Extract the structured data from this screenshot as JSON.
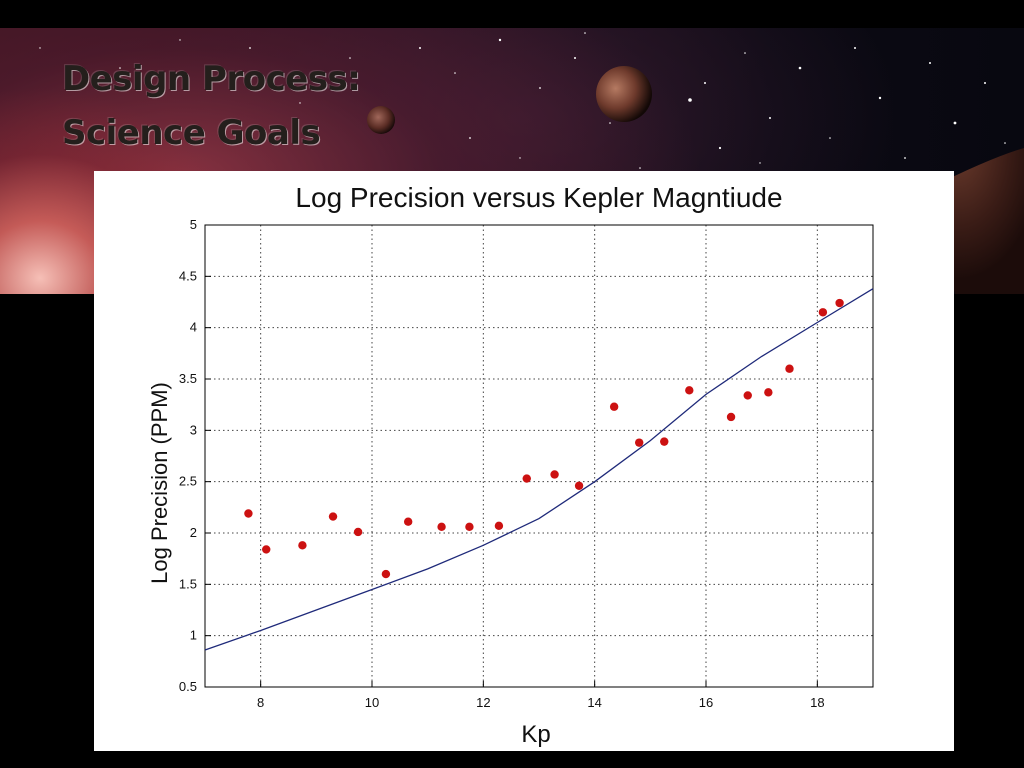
{
  "slide": {
    "title_line1": "Design Process:",
    "title_line2": "Science Goals"
  },
  "colors": {
    "background": "#000000",
    "title_text": "#241f1c",
    "marker": "#cc1111",
    "fit_line": "#1f2a7a",
    "grid": "#444444"
  },
  "chart_data": {
    "type": "scatter",
    "title": "Log Precision versus Kepler Magntiude",
    "xlabel": "Kp",
    "ylabel": "Log Precision (PPM)",
    "xlim": [
      7,
      19
    ],
    "ylim": [
      0.5,
      5
    ],
    "grid": true,
    "x_ticks": [
      8,
      10,
      12,
      14,
      16,
      18
    ],
    "y_ticks": [
      0.5,
      1,
      1.5,
      2,
      2.5,
      3,
      3.5,
      4,
      4.5,
      5
    ],
    "series": [
      {
        "kind": "points",
        "color": "#cc1111",
        "points": [
          {
            "x": 7.78,
            "y": 2.19
          },
          {
            "x": 8.1,
            "y": 1.84
          },
          {
            "x": 8.75,
            "y": 1.88
          },
          {
            "x": 9.3,
            "y": 2.16
          },
          {
            "x": 9.75,
            "y": 2.01
          },
          {
            "x": 10.25,
            "y": 1.6
          },
          {
            "x": 10.65,
            "y": 2.11
          },
          {
            "x": 11.25,
            "y": 2.06
          },
          {
            "x": 11.75,
            "y": 2.06
          },
          {
            "x": 12.28,
            "y": 2.07
          },
          {
            "x": 12.78,
            "y": 2.53
          },
          {
            "x": 13.28,
            "y": 2.57
          },
          {
            "x": 13.72,
            "y": 2.46
          },
          {
            "x": 14.35,
            "y": 3.23
          },
          {
            "x": 14.8,
            "y": 2.88
          },
          {
            "x": 15.25,
            "y": 2.89
          },
          {
            "x": 15.7,
            "y": 3.39
          },
          {
            "x": 16.45,
            "y": 3.13
          },
          {
            "x": 16.75,
            "y": 3.34
          },
          {
            "x": 17.12,
            "y": 3.37
          },
          {
            "x": 17.5,
            "y": 3.6
          },
          {
            "x": 18.1,
            "y": 4.15
          },
          {
            "x": 18.4,
            "y": 4.24
          }
        ]
      },
      {
        "kind": "line",
        "color": "#1f2a7a",
        "points": [
          {
            "x": 7.0,
            "y": 0.86
          },
          {
            "x": 8.0,
            "y": 1.05
          },
          {
            "x": 9.0,
            "y": 1.25
          },
          {
            "x": 10.0,
            "y": 1.45
          },
          {
            "x": 11.0,
            "y": 1.65
          },
          {
            "x": 12.0,
            "y": 1.88
          },
          {
            "x": 13.0,
            "y": 2.14
          },
          {
            "x": 14.0,
            "y": 2.5
          },
          {
            "x": 15.0,
            "y": 2.9
          },
          {
            "x": 16.0,
            "y": 3.35
          },
          {
            "x": 17.0,
            "y": 3.72
          },
          {
            "x": 18.0,
            "y": 4.05
          },
          {
            "x": 19.0,
            "y": 4.38
          }
        ]
      }
    ]
  }
}
